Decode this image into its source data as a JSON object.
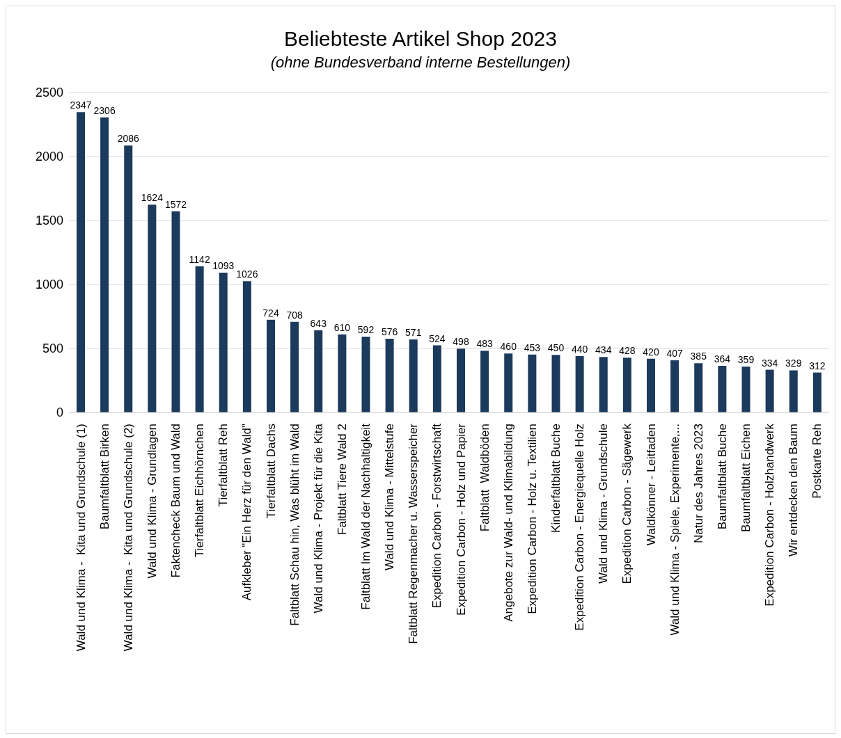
{
  "chart_data": {
    "type": "bar",
    "title": "Beliebteste Artikel Shop 2023",
    "subtitle": "(ohne Bundesverband interne Bestellungen)",
    "categories": [
      "Wald und Klima -  Kita und Grundschule (1)",
      "Baumfaltblatt Birken",
      "Wald und Klima -  Kita und Grundschule (2)",
      "Wald und Klima - Grundlagen",
      "Faktencheck Baum und Wald",
      "Tierfaltblatt Eichhörnchen",
      "Tierfaltblatt Reh",
      "Aufkleber \"Ein Herz für den Wald\"",
      "Tierfaltblatt Dachs",
      "Faltblatt Schau hin, Was blüht im Wald",
      "Wald und Klima - Projekt für die Kita",
      "Faltblatt Tiere Wald 2",
      "Faltblatt Im Wald der Nachhaltigkeit",
      "Wald und Klima - Mittelstufe",
      "Faltblatt Regenmacher u. Wasserspeicher",
      "Expedition Carbon - Forstwirtschaft",
      "Expedition Carbon - Holz und Papier",
      "Faltblatt  Waldböden",
      "Angebote zur Wald- und Klimabildung",
      "Expedition Carbon - Holz u. Textilien",
      "Kinderfaltblatt Buche",
      "Expedition Carbon - Energiequelle Holz",
      "Wald und Klima - Grundschule",
      "Expedition Carbon - Sägewerk",
      "Waldkönner - Leitfaden",
      "Wald und Klima - Spiele, Experimente,...",
      "Natur des Jahres 2023",
      "Baumfaltblatt Buche",
      "Baumfaltblatt Eichen",
      "Expedition Carbon - Holzhandwerk",
      "Wir entdecken den Baum",
      "Postkarte Reh"
    ],
    "values": [
      2347,
      2306,
      2086,
      1624,
      1572,
      1142,
      1093,
      1026,
      724,
      708,
      643,
      610,
      592,
      576,
      571,
      524,
      498,
      483,
      460,
      453,
      450,
      440,
      434,
      428,
      420,
      407,
      385,
      364,
      359,
      334,
      329,
      312
    ],
    "color": "#1b3a5c",
    "ylim": [
      0,
      2500
    ],
    "yticks": [
      0,
      500,
      1000,
      1500,
      2000,
      2500
    ],
    "grid": "y",
    "data_labels": true
  }
}
